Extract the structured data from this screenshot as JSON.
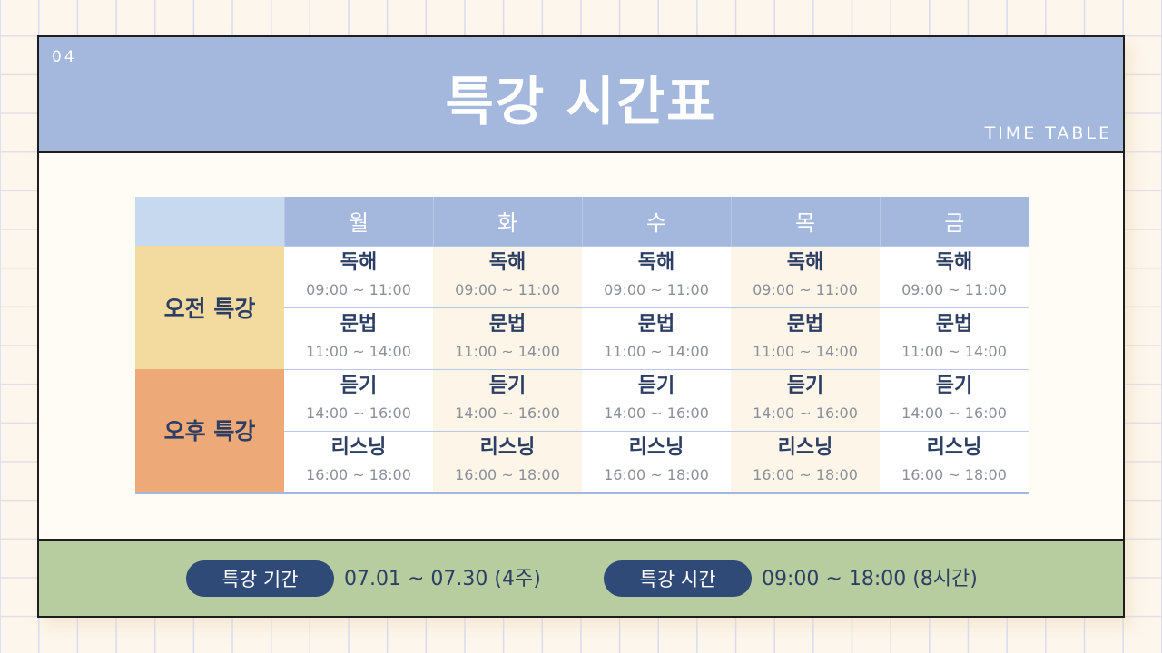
{
  "header": {
    "number": "04",
    "title": "특강 시간표",
    "subtitle": "TIME TABLE"
  },
  "table": {
    "days": [
      "월",
      "화",
      "수",
      "목",
      "금"
    ],
    "groups": [
      {
        "label": "오전 특강"
      },
      {
        "label": "오후 특강"
      }
    ],
    "rows": [
      {
        "subject": "독해",
        "time": "09:00 ~ 11:00"
      },
      {
        "subject": "문법",
        "time": "11:00 ~ 14:00"
      },
      {
        "subject": "듣기",
        "time": "14:00 ~ 16:00"
      },
      {
        "subject": "리스닝",
        "time": "16:00 ~ 18:00"
      }
    ]
  },
  "footer": {
    "period_label": "특강 기간",
    "period_value": "07.01 ~ 07.30 (4주)",
    "time_label": "특강 시간",
    "time_value": "09:00 ~ 18:00 (8시간)"
  },
  "colors": {
    "header": "#a4b8de",
    "morning": "#f3dba0",
    "afternoon": "#eda978",
    "footer": "#b7cd9f",
    "pill": "#2f4a76"
  }
}
